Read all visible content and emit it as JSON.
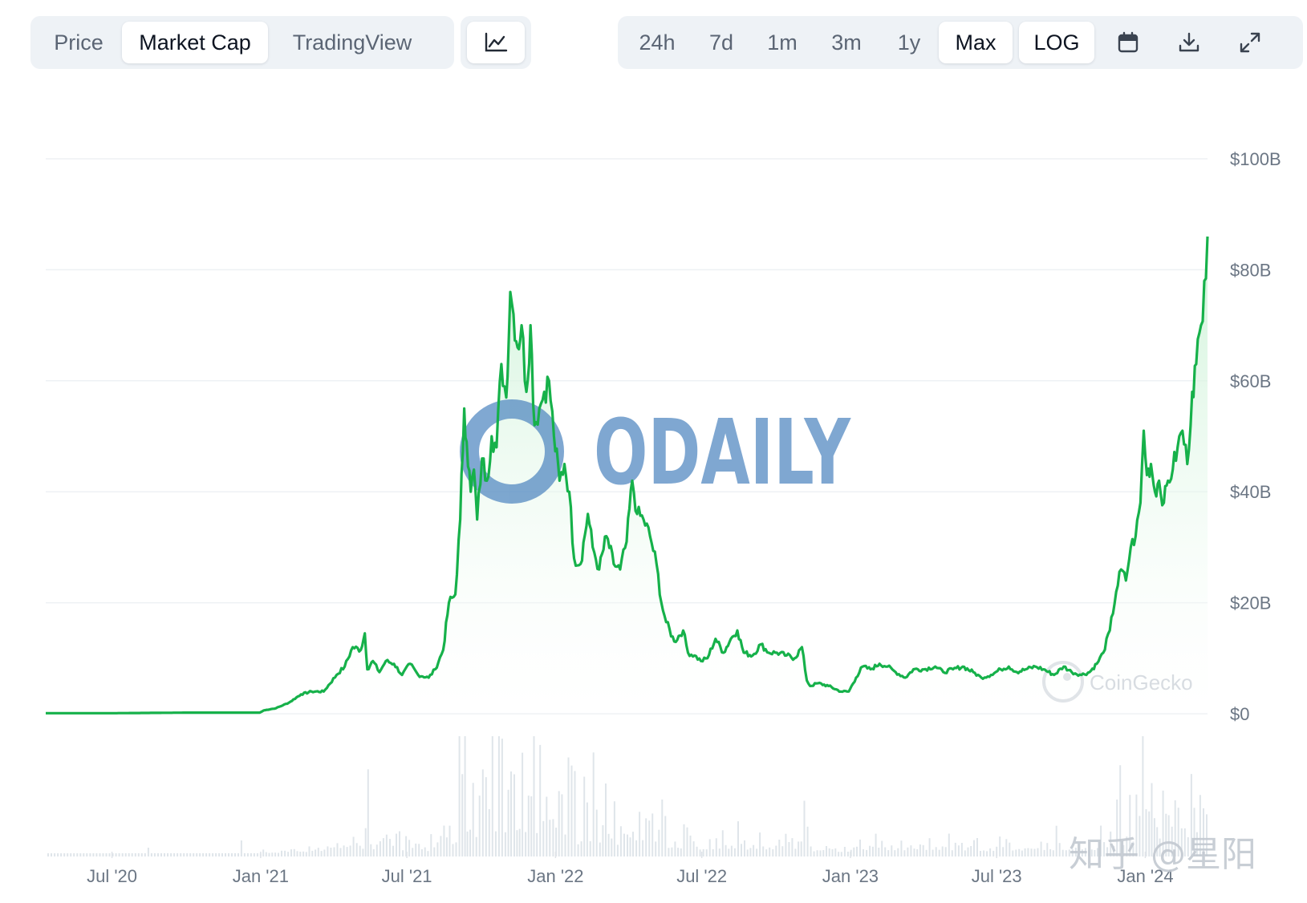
{
  "toolbar": {
    "view_tabs": [
      {
        "label": "Price",
        "active": false
      },
      {
        "label": "Market Cap",
        "active": true
      },
      {
        "label": "TradingView",
        "active": false
      }
    ],
    "chart_type_icon": "line-chart-icon",
    "range_tabs": [
      {
        "label": "24h",
        "active": false
      },
      {
        "label": "7d",
        "active": false
      },
      {
        "label": "1m",
        "active": false
      },
      {
        "label": "3m",
        "active": false
      },
      {
        "label": "1y",
        "active": false
      },
      {
        "label": "Max",
        "active": true
      },
      {
        "label": "LOG",
        "active": true
      }
    ],
    "icons": [
      "calendar-icon",
      "download-icon",
      "fullscreen-icon"
    ]
  },
  "watermarks": {
    "odaily": "ODAILY",
    "coingecko": "CoinGecko",
    "zhihu": "知乎 @星阳"
  },
  "colors": {
    "line": "#16b14a",
    "fill_top": "#c9f1d4",
    "volume": "#dfe5ea",
    "grid": "#eef1f4",
    "watermark_blue": "#4f86c0"
  },
  "chart_data": {
    "type": "area",
    "title": "",
    "xlabel": "",
    "ylabel": "",
    "x_ticks": [
      "Jul '20",
      "Jan '21",
      "Jul '21",
      "Jan '22",
      "Jul '22",
      "Jan '23",
      "Jul '23",
      "Jan '24"
    ],
    "y_ticks": [
      "$0",
      "$20B",
      "$40B",
      "$60B",
      "$80B",
      "$100B"
    ],
    "ylim": [
      0,
      100
    ],
    "y_unit": "billion USD",
    "x_range": [
      "2020-04-10",
      "2024-03-18"
    ],
    "grid": true,
    "series": [
      {
        "points": [
          [
            "2020-04-10",
            0.1
          ],
          [
            "2020-07-01",
            0.1
          ],
          [
            "2020-10-01",
            0.2
          ],
          [
            "2020-12-31",
            0.2
          ],
          [
            "2021-01-05",
            0.6
          ],
          [
            "2021-01-20",
            1.0
          ],
          [
            "2021-02-05",
            2.0
          ],
          [
            "2021-02-20",
            3.5
          ],
          [
            "2021-03-05",
            4.0
          ],
          [
            "2021-03-20",
            4.0
          ],
          [
            "2021-04-05",
            7.0
          ],
          [
            "2021-04-15",
            8.5
          ],
          [
            "2021-04-25",
            12.0
          ],
          [
            "2021-05-05",
            11.5
          ],
          [
            "2021-05-10",
            14.5
          ],
          [
            "2021-05-13",
            8.0
          ],
          [
            "2021-05-20",
            9.5
          ],
          [
            "2021-05-28",
            7.5
          ],
          [
            "2021-06-05",
            9.5
          ],
          [
            "2021-06-15",
            9.0
          ],
          [
            "2021-06-25",
            7.0
          ],
          [
            "2021-07-05",
            9.0
          ],
          [
            "2021-07-15",
            7.0
          ],
          [
            "2021-07-28",
            6.5
          ],
          [
            "2021-08-05",
            8.0
          ],
          [
            "2021-08-15",
            11.5
          ],
          [
            "2021-08-22",
            20.0
          ],
          [
            "2021-08-30",
            21.5
          ],
          [
            "2021-09-05",
            35.0
          ],
          [
            "2021-09-10",
            55.0
          ],
          [
            "2021-09-13",
            49.0
          ],
          [
            "2021-09-18",
            40.0
          ],
          [
            "2021-09-22",
            44.0
          ],
          [
            "2021-09-26",
            35.0
          ],
          [
            "2021-10-02",
            46.0
          ],
          [
            "2021-10-08",
            42.0
          ],
          [
            "2021-10-14",
            50.0
          ],
          [
            "2021-10-20",
            48.0
          ],
          [
            "2021-10-26",
            63.0
          ],
          [
            "2021-11-01",
            57.0
          ],
          [
            "2021-11-06",
            76.0
          ],
          [
            "2021-11-10",
            72.0
          ],
          [
            "2021-11-15",
            66.0
          ],
          [
            "2021-11-20",
            70.0
          ],
          [
            "2021-11-26",
            58.0
          ],
          [
            "2021-12-01",
            70.0
          ],
          [
            "2021-12-06",
            52.0
          ],
          [
            "2021-12-12",
            55.0
          ],
          [
            "2021-12-18",
            58.0
          ],
          [
            "2021-12-24",
            60.0
          ],
          [
            "2021-12-30",
            50.0
          ],
          [
            "2022-01-06",
            42.0
          ],
          [
            "2022-01-12",
            45.0
          ],
          [
            "2022-01-18",
            40.0
          ],
          [
            "2022-01-24",
            28.0
          ],
          [
            "2022-02-01",
            27.0
          ],
          [
            "2022-02-10",
            36.0
          ],
          [
            "2022-02-16",
            30.0
          ],
          [
            "2022-02-24",
            26.0
          ],
          [
            "2022-03-05",
            32.0
          ],
          [
            "2022-03-14",
            27.0
          ],
          [
            "2022-03-22",
            26.0
          ],
          [
            "2022-03-30",
            31.0
          ],
          [
            "2022-04-06",
            42.0
          ],
          [
            "2022-04-12",
            36.0
          ],
          [
            "2022-04-20",
            35.0
          ],
          [
            "2022-04-28",
            32.0
          ],
          [
            "2022-05-06",
            27.0
          ],
          [
            "2022-05-12",
            20.0
          ],
          [
            "2022-05-18",
            16.5
          ],
          [
            "2022-05-28",
            13.0
          ],
          [
            "2022-06-08",
            15.0
          ],
          [
            "2022-06-14",
            11.0
          ],
          [
            "2022-06-22",
            10.5
          ],
          [
            "2022-06-30",
            9.5
          ],
          [
            "2022-07-08",
            10.0
          ],
          [
            "2022-07-18",
            13.5
          ],
          [
            "2022-07-28",
            11.0
          ],
          [
            "2022-08-06",
            13.5
          ],
          [
            "2022-08-14",
            15.0
          ],
          [
            "2022-08-22",
            11.0
          ],
          [
            "2022-09-02",
            10.5
          ],
          [
            "2022-09-12",
            12.5
          ],
          [
            "2022-09-22",
            11.0
          ],
          [
            "2022-10-02",
            11.0
          ],
          [
            "2022-10-14",
            10.5
          ],
          [
            "2022-10-24",
            10.0
          ],
          [
            "2022-11-02",
            12.0
          ],
          [
            "2022-11-08",
            6.0
          ],
          [
            "2022-11-12",
            5.0
          ],
          [
            "2022-11-22",
            5.5
          ],
          [
            "2022-12-05",
            5.0
          ],
          [
            "2022-12-20",
            4.0
          ],
          [
            "2022-12-30",
            4.0
          ],
          [
            "2023-01-08",
            6.5
          ],
          [
            "2023-01-16",
            8.5
          ],
          [
            "2023-01-26",
            8.0
          ],
          [
            "2023-02-06",
            9.0
          ],
          [
            "2023-02-16",
            8.5
          ],
          [
            "2023-02-26",
            7.5
          ],
          [
            "2023-03-10",
            6.5
          ],
          [
            "2023-03-20",
            8.0
          ],
          [
            "2023-04-02",
            8.0
          ],
          [
            "2023-04-16",
            8.5
          ],
          [
            "2023-04-26",
            7.5
          ],
          [
            "2023-05-08",
            8.0
          ],
          [
            "2023-05-20",
            8.5
          ],
          [
            "2023-06-02",
            7.5
          ],
          [
            "2023-06-12",
            6.5
          ],
          [
            "2023-06-24",
            7.0
          ],
          [
            "2023-07-06",
            8.0
          ],
          [
            "2023-07-16",
            8.5
          ],
          [
            "2023-07-26",
            7.5
          ],
          [
            "2023-08-06",
            8.0
          ],
          [
            "2023-08-18",
            8.5
          ],
          [
            "2023-08-28",
            8.0
          ],
          [
            "2023-09-10",
            7.0
          ],
          [
            "2023-09-22",
            8.5
          ],
          [
            "2023-10-02",
            7.5
          ],
          [
            "2023-10-14",
            7.0
          ],
          [
            "2023-10-24",
            7.5
          ],
          [
            "2023-11-02",
            9.0
          ],
          [
            "2023-11-10",
            11.0
          ],
          [
            "2023-11-18",
            15.0
          ],
          [
            "2023-11-26",
            22.0
          ],
          [
            "2023-12-02",
            26.0
          ],
          [
            "2023-12-08",
            24.0
          ],
          [
            "2023-12-14",
            30.0
          ],
          [
            "2023-12-20",
            32.0
          ],
          [
            "2023-12-26",
            38.0
          ],
          [
            "2023-12-30",
            51.0
          ],
          [
            "2024-01-03",
            43.0
          ],
          [
            "2024-01-08",
            45.0
          ],
          [
            "2024-01-13",
            40.0
          ],
          [
            "2024-01-18",
            42.0
          ],
          [
            "2024-01-24",
            38.0
          ],
          [
            "2024-01-29",
            42.0
          ],
          [
            "2024-02-04",
            44.0
          ],
          [
            "2024-02-10",
            48.0
          ],
          [
            "2024-02-16",
            51.0
          ],
          [
            "2024-02-22",
            45.0
          ],
          [
            "2024-02-28",
            58.0
          ],
          [
            "2024-03-04",
            63.0
          ],
          [
            "2024-03-10",
            70.0
          ],
          [
            "2024-03-14",
            78.0
          ],
          [
            "2024-03-18",
            86.0
          ]
        ]
      }
    ]
  }
}
